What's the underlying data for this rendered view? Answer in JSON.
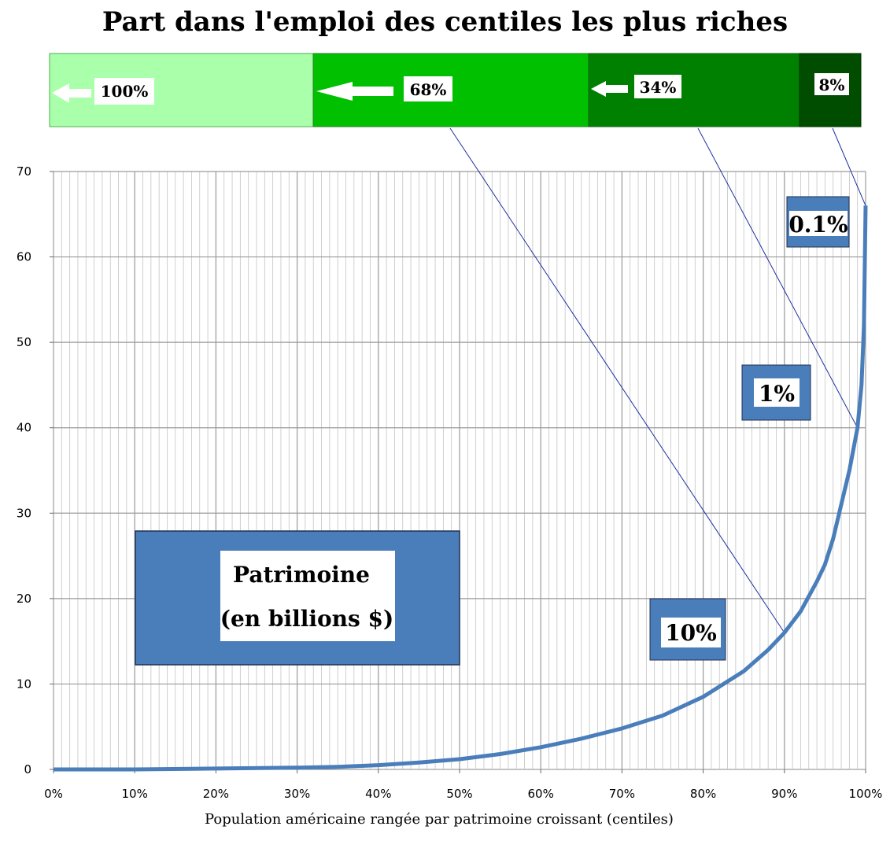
{
  "chart_data": {
    "type": "line",
    "title": "Part dans l'emploi des centiles les plus riches",
    "xlabel": "Population américaine rangée par patrimoine croissant (centiles)",
    "ylabel": "",
    "xlim": [
      0,
      100
    ],
    "ylim": [
      0,
      70
    ],
    "grid": true,
    "x_ticks": [
      0,
      10,
      20,
      30,
      40,
      50,
      60,
      70,
      80,
      90,
      100
    ],
    "x_tick_labels": [
      "0%",
      "10%",
      "20%",
      "30%",
      "40%",
      "50%",
      "60%",
      "70%",
      "80%",
      "90%",
      "100%"
    ],
    "y_ticks": [
      0,
      10,
      20,
      30,
      40,
      50,
      60,
      70
    ],
    "y_tick_labels": [
      "0",
      "10",
      "20",
      "30",
      "40",
      "50",
      "60",
      "70"
    ],
    "series": [
      {
        "name": "Patrimoine (en billions $)",
        "color": "#4a7ebb",
        "x": [
          0,
          10,
          20,
          30,
          35,
          40,
          45,
          50,
          55,
          60,
          65,
          70,
          75,
          80,
          85,
          88,
          90,
          92,
          94,
          95,
          96,
          97,
          98,
          99,
          99.5,
          99.8,
          100
        ],
        "y": [
          0,
          0,
          0.1,
          0.2,
          0.3,
          0.5,
          0.8,
          1.2,
          1.8,
          2.6,
          3.6,
          4.8,
          6.3,
          8.5,
          11.5,
          14,
          16,
          18.5,
          22,
          24,
          27,
          31,
          35,
          40,
          45,
          52,
          66
        ]
      }
    ],
    "legend": {
      "line1": "Patrimoine",
      "line2": "(en billions $)"
    },
    "group_tags": [
      {
        "label": "10%",
        "x": 90,
        "y": 16.5
      },
      {
        "label": "1%",
        "x": 99,
        "y": 40
      },
      {
        "label": "0.1%",
        "x": 100,
        "y": 65
      }
    ],
    "employment_share": {
      "segments": [
        {
          "label": "100%",
          "color": "#aaffaa"
        },
        {
          "label": "68%",
          "color": "#00c000"
        },
        {
          "label": "34%",
          "color": "#008000"
        },
        {
          "label": "8%",
          "color": "#004d00"
        }
      ]
    }
  }
}
